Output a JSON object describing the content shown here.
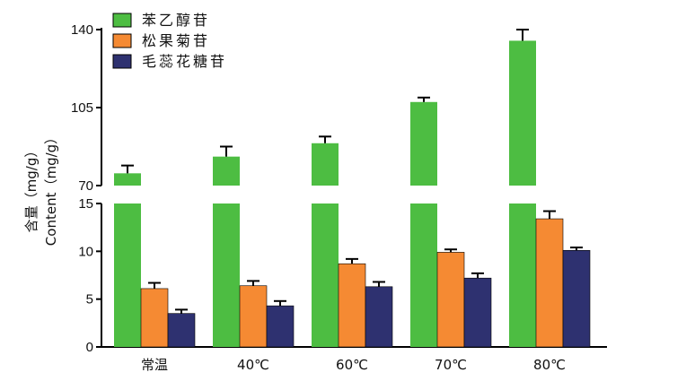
{
  "chart_data": {
    "type": "bar",
    "categories": [
      "常温",
      "40℃",
      "60℃",
      "70℃",
      "80℃"
    ],
    "series": [
      {
        "name": "苯乙醇苷",
        "color": "#4dbd42",
        "values": [
          75.5,
          83,
          89,
          107.5,
          135
        ],
        "errors": [
          3.5,
          4.5,
          3,
          2,
          5
        ]
      },
      {
        "name": "松果菊苷",
        "color": "#f58a33",
        "values": [
          6.1,
          6.4,
          8.7,
          9.9,
          13.4
        ],
        "errors": [
          0.6,
          0.5,
          0.5,
          0.3,
          0.8
        ]
      },
      {
        "name": "毛蕊花糖苷",
        "color": "#2e3170",
        "values": [
          3.5,
          4.3,
          6.3,
          7.2,
          10.1
        ],
        "errors": [
          0.4,
          0.5,
          0.5,
          0.5,
          0.3
        ]
      }
    ],
    "ylabel_cn": "含量（mg/g）",
    "ylabel_en": "Content（mg/g）",
    "axis_lower": {
      "range": [
        0,
        15
      ],
      "ticks": [
        "0",
        "5",
        "10",
        "15"
      ]
    },
    "axis_upper": {
      "range": [
        70,
        140
      ],
      "ticks": [
        "70",
        "105",
        "140"
      ]
    },
    "legend_position": "top-left"
  }
}
